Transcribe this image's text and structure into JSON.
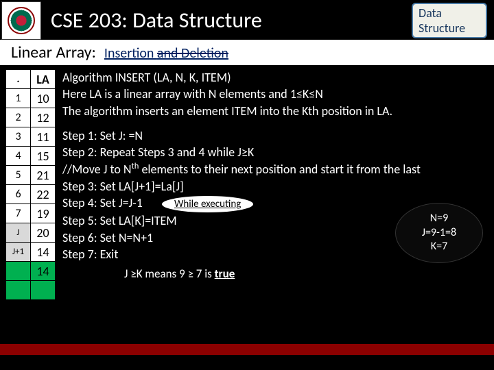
{
  "header": {
    "course_title": "CSE 203: Data Structure",
    "badge_line1": "Data",
    "badge_line2": "Structure"
  },
  "subheader": {
    "label": "Linear Array:",
    "topic_prefix": "Insertion ",
    "topic_strike": "and Deletion"
  },
  "array": {
    "header_dot": ".",
    "header_label": "LA",
    "rows": [
      {
        "idx": "1",
        "val": "10",
        "marker": false,
        "green": false
      },
      {
        "idx": "2",
        "val": "12",
        "marker": false,
        "green": false
      },
      {
        "idx": "3",
        "val": "11",
        "marker": false,
        "green": false
      },
      {
        "idx": "4",
        "val": "15",
        "marker": false,
        "green": false
      },
      {
        "idx": "5",
        "val": "21",
        "marker": false,
        "green": false
      },
      {
        "idx": "6",
        "val": "22",
        "marker": false,
        "green": false
      },
      {
        "idx": "7",
        "val": "19",
        "marker": false,
        "green": false
      },
      {
        "idx": "J",
        "val": "20",
        "marker": true,
        "green": false
      },
      {
        "idx": "J+1",
        "val": "14",
        "marker": true,
        "green": false
      },
      {
        "idx": "",
        "val": "14",
        "marker": false,
        "green": true
      },
      {
        "idx": "",
        "val": "",
        "marker": false,
        "green": true
      }
    ]
  },
  "algo": {
    "line1": "Algorithm INSERT (LA, N, K, ITEM)",
    "line2": "Here LA is a linear array with N elements and 1≤K≤N",
    "line3": "The algorithm inserts an element ITEM into the Kth position in LA.",
    "step1": "Step 1: Set J: =N",
    "step2": "Step 2: Repeat Steps 3 and 4 while J≥K",
    "step_comment_a": "//Move J to N",
    "step_comment_sup": "th",
    "step_comment_b": " elements to their next position and start  it from the last",
    "step3": "Step 3: Set LA[J+1]=La[J]",
    "step4": "Step 4: Set J=J-1",
    "step5": "Step 5: Set LA[K]=ITEM",
    "step6": "Step 6: Set N=N+1",
    "step7": "Step 7: Exit",
    "while_label": "While executing"
  },
  "state": {
    "n": "N=9",
    "j": "J=9-1=8",
    "k": "K=7"
  },
  "condition": {
    "text_a": "J ≥K means 9 ≥ 7 is ",
    "text_b": "true"
  },
  "colors": {
    "bg": "#000000",
    "header_text": "#ffffff",
    "badge_bg": "#f0f0e8",
    "badge_border": "#4a7ba6",
    "badge_text": "#17365d",
    "topic_color": "#002060",
    "green": "#00b050",
    "footer": "#8b0000"
  }
}
